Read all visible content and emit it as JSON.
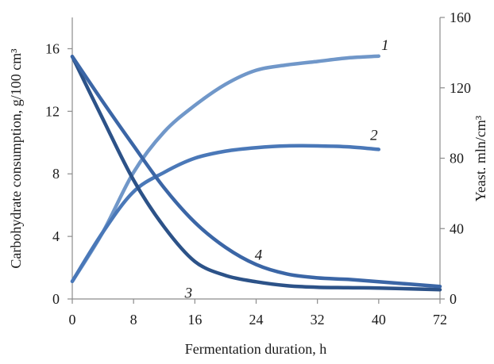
{
  "chart_data": {
    "type": "line",
    "xlabel": "Fermentation duration, h",
    "ylabel_left": "Carbohydrate consumption, g/100 cm³",
    "ylabel_right": "Yeast. mln/cm³",
    "x_ticks": [
      "0",
      "8",
      "16",
      "24",
      "32",
      "40",
      "72"
    ],
    "ylim_left": [
      0,
      18
    ],
    "y_ticks_left": [
      "0",
      "4",
      "8",
      "12",
      "16"
    ],
    "ylim_right": [
      0,
      160
    ],
    "y_ticks_right": [
      "0",
      "40",
      "80",
      "120",
      "160"
    ],
    "grid": false,
    "legend": "none",
    "series": [
      {
        "label": "1",
        "axis": "right",
        "color": "#7097c9",
        "points": [
          [
            0,
            10
          ],
          [
            4,
            38
          ],
          [
            8,
            72
          ],
          [
            12,
            95
          ],
          [
            16,
            110
          ],
          [
            20,
            122
          ],
          [
            24,
            130
          ],
          [
            28,
            133
          ],
          [
            32,
            135
          ],
          [
            36,
            137
          ],
          [
            40,
            138
          ]
        ]
      },
      {
        "label": "2",
        "axis": "right",
        "color": "#4a78b8",
        "points": [
          [
            0,
            10
          ],
          [
            4,
            38
          ],
          [
            8,
            61
          ],
          [
            12,
            72
          ],
          [
            16,
            80
          ],
          [
            20,
            84
          ],
          [
            24,
            86
          ],
          [
            28,
            87
          ],
          [
            32,
            87
          ],
          [
            36,
            86.5
          ],
          [
            40,
            85
          ]
        ]
      },
      {
        "label": "3",
        "axis": "left",
        "color": "#2c5288",
        "points": [
          [
            0,
            15.5
          ],
          [
            4,
            11.5
          ],
          [
            8,
            7.6
          ],
          [
            12,
            4.6
          ],
          [
            16,
            2.4
          ],
          [
            20,
            1.5
          ],
          [
            24,
            1.1
          ],
          [
            28,
            0.85
          ],
          [
            32,
            0.75
          ],
          [
            36,
            0.72
          ],
          [
            40,
            0.7
          ],
          [
            72,
            0.6
          ]
        ]
      },
      {
        "label": "4",
        "axis": "left",
        "color": "#3b66a6",
        "points": [
          [
            0,
            15.5
          ],
          [
            4,
            12.6
          ],
          [
            8,
            9.8
          ],
          [
            12,
            7.1
          ],
          [
            16,
            4.9
          ],
          [
            20,
            3.3
          ],
          [
            24,
            2.2
          ],
          [
            28,
            1.6
          ],
          [
            32,
            1.35
          ],
          [
            36,
            1.25
          ],
          [
            40,
            1.1
          ],
          [
            72,
            0.8
          ]
        ]
      }
    ]
  }
}
